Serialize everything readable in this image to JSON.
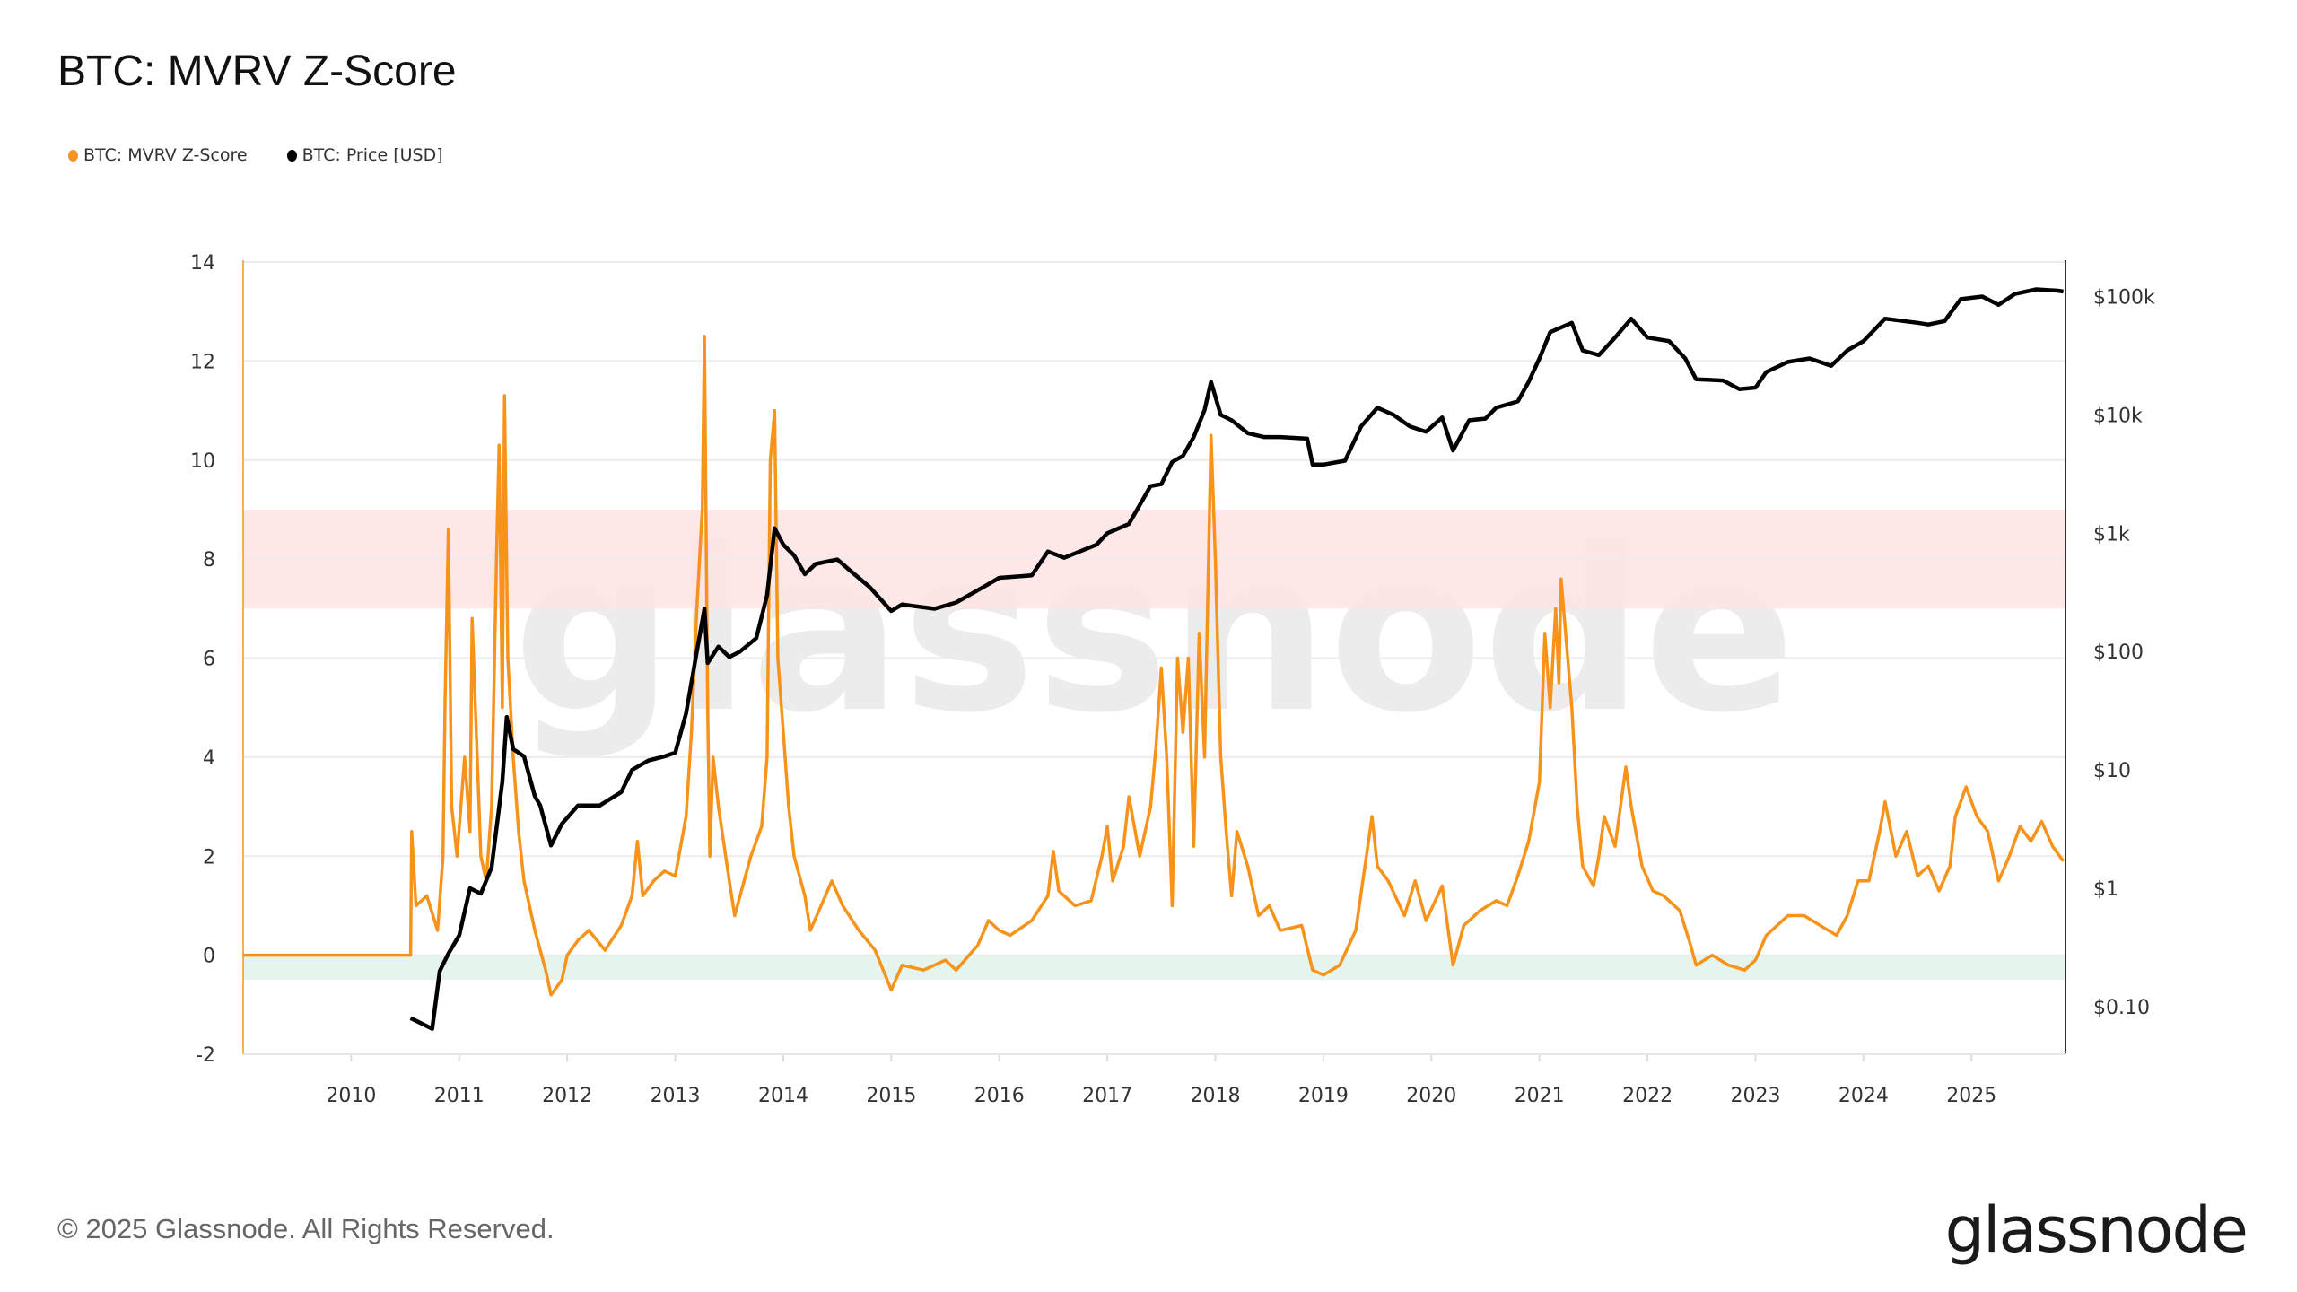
{
  "title": "BTC: MVRV Z-Score",
  "legend": [
    {
      "label": "BTC: MVRV Z-Score",
      "color": "#f7931a"
    },
    {
      "label": "BTC: Price [USD]",
      "color": "#000000"
    }
  ],
  "footer": "© 2025 Glassnode. All Rights Reserved.",
  "logo": "glassnode",
  "watermark": "glassnode",
  "chart_data": {
    "type": "line",
    "title": "BTC: MVRV Z-Score",
    "x_ticks": [
      "2010",
      "2011",
      "2012",
      "2013",
      "2014",
      "2015",
      "2016",
      "2017",
      "2018",
      "2019",
      "2020",
      "2021",
      "2022",
      "2023",
      "2024",
      "2025"
    ],
    "xlim": [
      2009.0,
      2025.87
    ],
    "y_left": {
      "ticks": [
        "-2",
        "0",
        "2",
        "4",
        "6",
        "8",
        "10",
        "12",
        "14"
      ],
      "range": [
        -2,
        14
      ],
      "scale": "linear"
    },
    "y_right": {
      "ticks": [
        "$0.10",
        "$1",
        "$10",
        "$100",
        "$1k",
        "$10k",
        "$100k"
      ],
      "tick_values": [
        0.1,
        1,
        10,
        100,
        1000,
        10000,
        100000
      ],
      "scale": "log"
    },
    "grid": true,
    "legend_position": "top-left",
    "bands": [
      {
        "from": 7,
        "to": 9,
        "color": "#fde4e4"
      },
      {
        "from": -0.5,
        "to": 0,
        "color": "#e2f4ec"
      }
    ],
    "series": [
      {
        "name": "BTC: MVRV Z-Score",
        "axis": "left",
        "color": "#f7931a",
        "points": [
          [
            2009.0,
            0
          ],
          [
            2010.55,
            0
          ],
          [
            2010.56,
            2.5
          ],
          [
            2010.6,
            1.0
          ],
          [
            2010.7,
            1.2
          ],
          [
            2010.8,
            0.5
          ],
          [
            2010.85,
            2.0
          ],
          [
            2010.87,
            5.2
          ],
          [
            2010.9,
            8.6
          ],
          [
            2010.93,
            3.0
          ],
          [
            2010.98,
            2.0
          ],
          [
            2011.05,
            4.0
          ],
          [
            2011.1,
            2.5
          ],
          [
            2011.12,
            6.8
          ],
          [
            2011.2,
            2.0
          ],
          [
            2011.25,
            1.5
          ],
          [
            2011.3,
            3.0
          ],
          [
            2011.35,
            8.5
          ],
          [
            2011.37,
            10.3
          ],
          [
            2011.4,
            5.0
          ],
          [
            2011.42,
            11.3
          ],
          [
            2011.45,
            6.0
          ],
          [
            2011.5,
            4.0
          ],
          [
            2011.55,
            2.5
          ],
          [
            2011.6,
            1.5
          ],
          [
            2011.7,
            0.5
          ],
          [
            2011.8,
            -0.3
          ],
          [
            2011.85,
            -0.8
          ],
          [
            2011.95,
            -0.5
          ],
          [
            2012.0,
            0
          ],
          [
            2012.1,
            0.3
          ],
          [
            2012.2,
            0.5
          ],
          [
            2012.35,
            0.1
          ],
          [
            2012.5,
            0.6
          ],
          [
            2012.6,
            1.2
          ],
          [
            2012.65,
            2.3
          ],
          [
            2012.7,
            1.2
          ],
          [
            2012.8,
            1.5
          ],
          [
            2012.9,
            1.7
          ],
          [
            2013.0,
            1.6
          ],
          [
            2013.1,
            2.8
          ],
          [
            2013.15,
            4.5
          ],
          [
            2013.2,
            7.0
          ],
          [
            2013.25,
            9.0
          ],
          [
            2013.27,
            12.5
          ],
          [
            2013.3,
            5.0
          ],
          [
            2013.32,
            2.0
          ],
          [
            2013.35,
            4.0
          ],
          [
            2013.4,
            3.0
          ],
          [
            2013.5,
            1.5
          ],
          [
            2013.55,
            0.8
          ],
          [
            2013.6,
            1.2
          ],
          [
            2013.7,
            2.0
          ],
          [
            2013.8,
            2.6
          ],
          [
            2013.85,
            4.0
          ],
          [
            2013.88,
            10.0
          ],
          [
            2013.92,
            11.0
          ],
          [
            2013.95,
            6.0
          ],
          [
            2014.0,
            4.5
          ],
          [
            2014.05,
            3.0
          ],
          [
            2014.1,
            2.0
          ],
          [
            2014.2,
            1.2
          ],
          [
            2014.25,
            0.5
          ],
          [
            2014.35,
            1.0
          ],
          [
            2014.45,
            1.5
          ],
          [
            2014.55,
            1.0
          ],
          [
            2014.7,
            0.5
          ],
          [
            2014.85,
            0.1
          ],
          [
            2015.0,
            -0.7
          ],
          [
            2015.1,
            -0.2
          ],
          [
            2015.3,
            -0.3
          ],
          [
            2015.5,
            -0.1
          ],
          [
            2015.6,
            -0.3
          ],
          [
            2015.8,
            0.2
          ],
          [
            2015.9,
            0.7
          ],
          [
            2016.0,
            0.5
          ],
          [
            2016.1,
            0.4
          ],
          [
            2016.3,
            0.7
          ],
          [
            2016.45,
            1.2
          ],
          [
            2016.5,
            2.1
          ],
          [
            2016.55,
            1.3
          ],
          [
            2016.7,
            1.0
          ],
          [
            2016.85,
            1.1
          ],
          [
            2016.95,
            2.0
          ],
          [
            2017.0,
            2.6
          ],
          [
            2017.05,
            1.5
          ],
          [
            2017.15,
            2.2
          ],
          [
            2017.2,
            3.2
          ],
          [
            2017.3,
            2.0
          ],
          [
            2017.4,
            3.0
          ],
          [
            2017.45,
            4.2
          ],
          [
            2017.5,
            5.8
          ],
          [
            2017.55,
            4.0
          ],
          [
            2017.6,
            1.0
          ],
          [
            2017.65,
            6.0
          ],
          [
            2017.7,
            4.5
          ],
          [
            2017.75,
            6.0
          ],
          [
            2017.8,
            2.2
          ],
          [
            2017.85,
            6.5
          ],
          [
            2017.9,
            4.0
          ],
          [
            2017.96,
            10.5
          ],
          [
            2018.0,
            8.0
          ],
          [
            2018.05,
            4.0
          ],
          [
            2018.1,
            2.5
          ],
          [
            2018.15,
            1.2
          ],
          [
            2018.2,
            2.5
          ],
          [
            2018.3,
            1.8
          ],
          [
            2018.4,
            0.8
          ],
          [
            2018.5,
            1.0
          ],
          [
            2018.6,
            0.5
          ],
          [
            2018.8,
            0.6
          ],
          [
            2018.9,
            -0.3
          ],
          [
            2019.0,
            -0.4
          ],
          [
            2019.15,
            -0.2
          ],
          [
            2019.3,
            0.5
          ],
          [
            2019.45,
            2.8
          ],
          [
            2019.5,
            1.8
          ],
          [
            2019.6,
            1.5
          ],
          [
            2019.75,
            0.8
          ],
          [
            2019.85,
            1.5
          ],
          [
            2019.95,
            0.7
          ],
          [
            2020.1,
            1.4
          ],
          [
            2020.2,
            -0.2
          ],
          [
            2020.3,
            0.6
          ],
          [
            2020.45,
            0.9
          ],
          [
            2020.6,
            1.1
          ],
          [
            2020.7,
            1.0
          ],
          [
            2020.8,
            1.6
          ],
          [
            2020.9,
            2.3
          ],
          [
            2021.0,
            3.5
          ],
          [
            2021.05,
            6.5
          ],
          [
            2021.1,
            5.0
          ],
          [
            2021.15,
            7.0
          ],
          [
            2021.18,
            5.5
          ],
          [
            2021.2,
            7.6
          ],
          [
            2021.3,
            5.0
          ],
          [
            2021.35,
            3.0
          ],
          [
            2021.4,
            1.8
          ],
          [
            2021.5,
            1.4
          ],
          [
            2021.55,
            2.0
          ],
          [
            2021.6,
            2.8
          ],
          [
            2021.7,
            2.2
          ],
          [
            2021.8,
            3.8
          ],
          [
            2021.85,
            3.0
          ],
          [
            2021.95,
            1.8
          ],
          [
            2022.05,
            1.3
          ],
          [
            2022.15,
            1.2
          ],
          [
            2022.3,
            0.9
          ],
          [
            2022.4,
            0.2
          ],
          [
            2022.45,
            -0.2
          ],
          [
            2022.6,
            0
          ],
          [
            2022.75,
            -0.2
          ],
          [
            2022.9,
            -0.3
          ],
          [
            2023.0,
            -0.1
          ],
          [
            2023.1,
            0.4
          ],
          [
            2023.3,
            0.8
          ],
          [
            2023.45,
            0.8
          ],
          [
            2023.6,
            0.6
          ],
          [
            2023.75,
            0.4
          ],
          [
            2023.85,
            0.8
          ],
          [
            2023.95,
            1.5
          ],
          [
            2024.05,
            1.5
          ],
          [
            2024.15,
            2.5
          ],
          [
            2024.2,
            3.1
          ],
          [
            2024.3,
            2.0
          ],
          [
            2024.4,
            2.5
          ],
          [
            2024.5,
            1.6
          ],
          [
            2024.6,
            1.8
          ],
          [
            2024.7,
            1.3
          ],
          [
            2024.8,
            1.8
          ],
          [
            2024.85,
            2.8
          ],
          [
            2024.95,
            3.4
          ],
          [
            2025.05,
            2.8
          ],
          [
            2025.15,
            2.5
          ],
          [
            2025.25,
            1.5
          ],
          [
            2025.35,
            2.0
          ],
          [
            2025.45,
            2.6
          ],
          [
            2025.55,
            2.3
          ],
          [
            2025.65,
            2.7
          ],
          [
            2025.75,
            2.2
          ],
          [
            2025.85,
            1.9
          ]
        ]
      },
      {
        "name": "BTC: Price [USD]",
        "axis": "right",
        "color": "#000000",
        "points": [
          [
            2010.55,
            0.08
          ],
          [
            2010.75,
            0.065
          ],
          [
            2010.82,
            0.2
          ],
          [
            2010.9,
            0.28
          ],
          [
            2011.0,
            0.4
          ],
          [
            2011.1,
            1.0
          ],
          [
            2011.2,
            0.9
          ],
          [
            2011.3,
            1.5
          ],
          [
            2011.4,
            8
          ],
          [
            2011.44,
            28
          ],
          [
            2011.5,
            15
          ],
          [
            2011.6,
            13
          ],
          [
            2011.7,
            6
          ],
          [
            2011.75,
            5
          ],
          [
            2011.85,
            2.3
          ],
          [
            2011.95,
            3.5
          ],
          [
            2012.1,
            5
          ],
          [
            2012.3,
            5
          ],
          [
            2012.5,
            6.5
          ],
          [
            2012.6,
            10
          ],
          [
            2012.75,
            12
          ],
          [
            2012.9,
            13
          ],
          [
            2013.0,
            14
          ],
          [
            2013.1,
            30
          ],
          [
            2013.2,
            100
          ],
          [
            2013.27,
            230
          ],
          [
            2013.3,
            80
          ],
          [
            2013.4,
            110
          ],
          [
            2013.5,
            90
          ],
          [
            2013.6,
            100
          ],
          [
            2013.75,
            130
          ],
          [
            2013.85,
            300
          ],
          [
            2013.92,
            1100
          ],
          [
            2014.0,
            800
          ],
          [
            2014.1,
            650
          ],
          [
            2014.2,
            450
          ],
          [
            2014.3,
            550
          ],
          [
            2014.5,
            600
          ],
          [
            2014.6,
            500
          ],
          [
            2014.8,
            350
          ],
          [
            2015.0,
            220
          ],
          [
            2015.1,
            250
          ],
          [
            2015.4,
            230
          ],
          [
            2015.6,
            260
          ],
          [
            2015.85,
            350
          ],
          [
            2016.0,
            420
          ],
          [
            2016.3,
            440
          ],
          [
            2016.45,
            700
          ],
          [
            2016.6,
            620
          ],
          [
            2016.9,
            800
          ],
          [
            2017.0,
            1000
          ],
          [
            2017.2,
            1200
          ],
          [
            2017.4,
            2500
          ],
          [
            2017.5,
            2600
          ],
          [
            2017.6,
            4000
          ],
          [
            2017.7,
            4500
          ],
          [
            2017.8,
            6500
          ],
          [
            2017.9,
            11000
          ],
          [
            2017.96,
            19000
          ],
          [
            2018.05,
            10000
          ],
          [
            2018.15,
            9000
          ],
          [
            2018.3,
            7000
          ],
          [
            2018.45,
            6500
          ],
          [
            2018.6,
            6500
          ],
          [
            2018.85,
            6300
          ],
          [
            2018.9,
            3800
          ],
          [
            2019.0,
            3800
          ],
          [
            2019.2,
            4100
          ],
          [
            2019.35,
            8000
          ],
          [
            2019.5,
            11500
          ],
          [
            2019.65,
            10000
          ],
          [
            2019.8,
            8000
          ],
          [
            2019.95,
            7200
          ],
          [
            2020.1,
            9500
          ],
          [
            2020.2,
            5000
          ],
          [
            2020.35,
            9000
          ],
          [
            2020.5,
            9300
          ],
          [
            2020.6,
            11500
          ],
          [
            2020.8,
            13000
          ],
          [
            2020.9,
            19000
          ],
          [
            2021.0,
            30000
          ],
          [
            2021.1,
            50000
          ],
          [
            2021.3,
            60000
          ],
          [
            2021.4,
            35000
          ],
          [
            2021.55,
            32000
          ],
          [
            2021.7,
            45000
          ],
          [
            2021.85,
            65000
          ],
          [
            2022.0,
            45000
          ],
          [
            2022.2,
            42000
          ],
          [
            2022.35,
            30000
          ],
          [
            2022.45,
            20000
          ],
          [
            2022.7,
            19500
          ],
          [
            2022.85,
            16500
          ],
          [
            2023.0,
            17000
          ],
          [
            2023.1,
            23000
          ],
          [
            2023.3,
            28000
          ],
          [
            2023.5,
            30000
          ],
          [
            2023.7,
            26000
          ],
          [
            2023.85,
            35000
          ],
          [
            2024.0,
            42000
          ],
          [
            2024.2,
            65000
          ],
          [
            2024.5,
            60000
          ],
          [
            2024.6,
            58000
          ],
          [
            2024.75,
            62000
          ],
          [
            2024.9,
            95000
          ],
          [
            2025.1,
            100000
          ],
          [
            2025.25,
            85000
          ],
          [
            2025.4,
            105000
          ],
          [
            2025.6,
            115000
          ],
          [
            2025.8,
            112000
          ],
          [
            2025.85,
            110000
          ]
        ]
      }
    ]
  }
}
